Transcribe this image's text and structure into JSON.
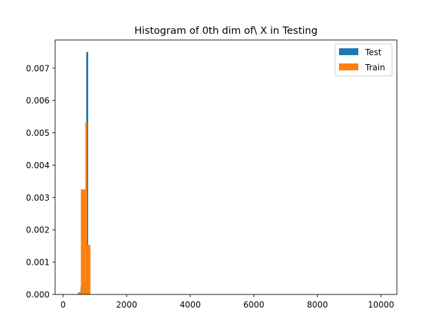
{
  "chart_data": {
    "type": "bar",
    "title": "Histogram of 0th dim of\\ X in Testing",
    "xlabel": "",
    "ylabel": "",
    "xlim": [
      -250,
      10500
    ],
    "ylim": [
      0,
      0.00787
    ],
    "xticks": [
      0,
      2000,
      4000,
      6000,
      8000,
      10000
    ],
    "xtick_labels": [
      "0",
      "2000",
      "4000",
      "6000",
      "8000",
      "10000"
    ],
    "yticks": [
      0.0,
      0.001,
      0.002,
      0.003,
      0.004,
      0.005,
      0.006,
      0.007
    ],
    "ytick_labels": [
      "0.000",
      "0.001",
      "0.002",
      "0.003",
      "0.004",
      "0.005",
      "0.006",
      "0.007"
    ],
    "grid": false,
    "legend_position": "top-right",
    "series": [
      {
        "name": "Test",
        "color": "#1f77b4",
        "bins": [
          {
            "x0": 430,
            "x1": 490,
            "value": 1e-05
          },
          {
            "x0": 490,
            "x1": 550,
            "value": 7e-05
          },
          {
            "x0": 550,
            "x1": 610,
            "value": 0.00023
          },
          {
            "x0": 610,
            "x1": 670,
            "value": 0.00014
          },
          {
            "x0": 670,
            "x1": 730,
            "value": 0.0004
          },
          {
            "x0": 730,
            "x1": 790,
            "value": 0.0075
          },
          {
            "x0": 790,
            "x1": 850,
            "value": 0.0015
          }
        ]
      },
      {
        "name": "Train",
        "color": "#ff7f0e",
        "bins": [
          {
            "x0": 460,
            "x1": 560,
            "value": 6e-05
          },
          {
            "x0": 560,
            "x1": 700,
            "value": 0.00325
          },
          {
            "x0": 700,
            "x1": 760,
            "value": 0.00532
          },
          {
            "x0": 760,
            "x1": 860,
            "value": 0.00153
          }
        ]
      }
    ]
  }
}
